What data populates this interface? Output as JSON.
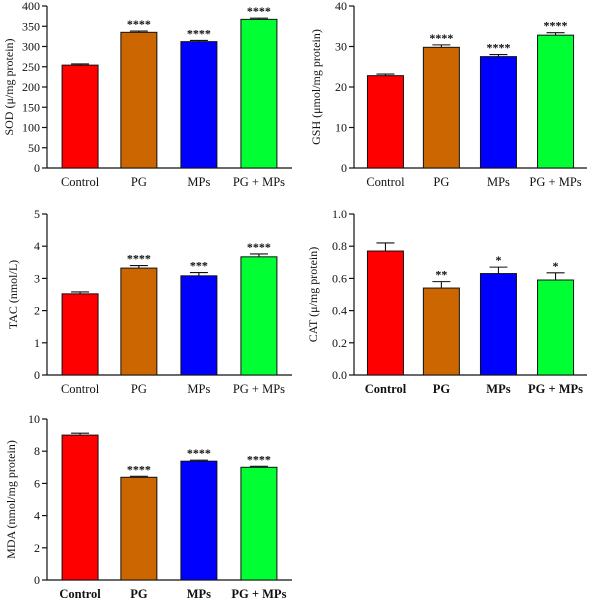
{
  "colors": {
    "Control": "#ff0000",
    "PG": "#cc6600",
    "MPs": "#0000ff",
    "PG + MPs": "#00ff33"
  },
  "chart_data": [
    {
      "type": "bar",
      "categories": [
        "Control",
        "PG",
        "MPs",
        "PG + MPs"
      ],
      "values": [
        254,
        335,
        312,
        367
      ],
      "errors": [
        3,
        3,
        3,
        3
      ],
      "significance": [
        "",
        "****",
        "****",
        "****"
      ],
      "ylabel": "SOD (μ/mg protein)",
      "ylim": [
        0,
        400
      ],
      "yticks": [
        0,
        50,
        100,
        150,
        200,
        250,
        300,
        350,
        400
      ],
      "bold_categories": false
    },
    {
      "type": "bar",
      "categories": [
        "Control",
        "PG",
        "MPs",
        "PG + MPs"
      ],
      "values": [
        22.8,
        29.8,
        27.5,
        32.8
      ],
      "errors": [
        0.4,
        0.6,
        0.5,
        0.6
      ],
      "significance": [
        "",
        "****",
        "****",
        "****"
      ],
      "ylabel": "GSH (μmol/mg protein)",
      "ylim": [
        0,
        40
      ],
      "yticks": [
        0,
        10,
        20,
        30,
        40
      ],
      "bold_categories": false
    },
    {
      "type": "bar",
      "categories": [
        "Control",
        "PG",
        "MPs",
        "PG + MPs"
      ],
      "values": [
        2.52,
        3.32,
        3.08,
        3.67
      ],
      "errors": [
        0.06,
        0.08,
        0.1,
        0.09
      ],
      "significance": [
        "",
        "****",
        "***",
        "****"
      ],
      "ylabel": "TAC (nmol/L)",
      "ylim": [
        0,
        5
      ],
      "yticks": [
        0,
        1,
        2,
        3,
        4,
        5
      ],
      "bold_categories": false
    },
    {
      "type": "bar",
      "categories": [
        "Control",
        "PG",
        "MPs",
        "PG + MPs"
      ],
      "values": [
        0.77,
        0.54,
        0.63,
        0.59
      ],
      "errors": [
        0.05,
        0.04,
        0.04,
        0.045
      ],
      "significance": [
        "",
        "**",
        "*",
        "*"
      ],
      "ylabel": "CAT (μ/mg protein)",
      "ylim": [
        0,
        1.0
      ],
      "yticks": [
        0.0,
        0.2,
        0.4,
        0.6,
        0.8,
        1.0
      ],
      "tick_decimals": 1,
      "bold_categories": true
    },
    {
      "type": "bar",
      "categories": [
        "Control",
        "PG",
        "MPs",
        "PG + MPs"
      ],
      "values": [
        9.0,
        6.38,
        7.38,
        7.0
      ],
      "errors": [
        0.12,
        0.06,
        0.06,
        0.06
      ],
      "significance": [
        "",
        "****",
        "****",
        "****"
      ],
      "ylabel": "MDA (nmol/mg protein)",
      "ylim": [
        0,
        10
      ],
      "yticks": [
        0,
        2,
        4,
        6,
        8,
        10
      ],
      "bold_categories": true
    }
  ]
}
